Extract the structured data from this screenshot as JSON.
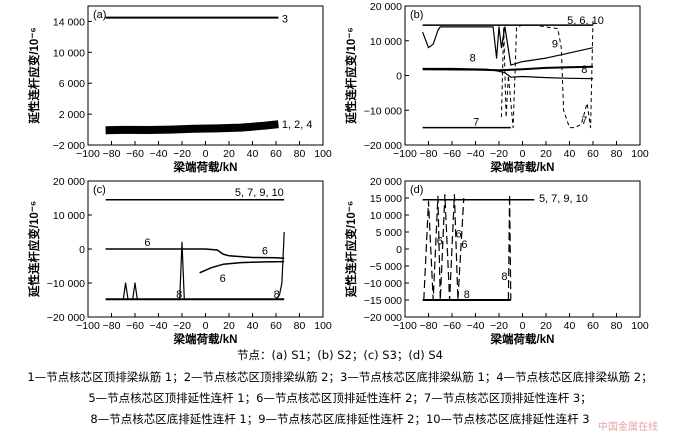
{
  "figure": {
    "ylabel": "延性连杆应变/10⁻⁶",
    "xlabel": "梁端荷载/kN",
    "nodes_caption": "节点：(a) S1；(b) S2；(c) S3；(d) S4",
    "legend_lines": [
      "1—节点核芯区顶排梁纵筋 1；2—节点核芯区顶排梁纵筋 2；3—节点核芯区底排梁纵筋 1；4—节点核芯区底排梁纵筋 2；",
      "5—节点核芯区顶排延性连杆 1；6—节点核芯区顶排延性连杆 2；7—节点核芯区顶排延性连杆 3；",
      "8—节点核芯区底排延性连杆 1；9—节点核芯区底排延性连杆 2；10—节点核芯区底排延性连杆 3"
    ],
    "watermark": "中国金属在线"
  },
  "chart_data": [
    {
      "panel": "(a)",
      "type": "line",
      "xlim": [
        -100,
        100
      ],
      "ylim": [
        -2000,
        16000
      ],
      "xticks": [
        -100,
        -80,
        -60,
        -40,
        -20,
        0,
        20,
        40,
        60,
        80,
        100
      ],
      "yticks": [
        -2000,
        2000,
        6000,
        10000,
        14000
      ],
      "xtick_labels": [
        "−100",
        "−80",
        "−60",
        "−40",
        "−20",
        "0",
        "20",
        "40",
        "60",
        "80",
        "100"
      ],
      "ytick_labels": [
        "−2 000",
        "2 000",
        "6 000",
        "10 000",
        "14 000"
      ],
      "series": [
        {
          "name": "3",
          "x": [
            -85,
            62
          ],
          "y": [
            14500,
            14500
          ],
          "width": 2
        },
        {
          "name": "1, 2, 4",
          "x": [
            -85,
            -70,
            -50,
            -30,
            -10,
            10,
            30,
            50,
            62
          ],
          "y": [
            -100,
            -50,
            -60,
            0,
            100,
            150,
            250,
            500,
            700
          ],
          "width": 8
        }
      ],
      "annotations": [
        {
          "text": "3",
          "x": 65,
          "y": 14400
        },
        {
          "text": "1, 2, 4",
          "x": 65,
          "y": 700
        }
      ]
    },
    {
      "panel": "(b)",
      "type": "line",
      "xlim": [
        -100,
        100
      ],
      "ylim": [
        -20000,
        20000
      ],
      "xticks": [
        -100,
        -80,
        -60,
        -40,
        -20,
        0,
        20,
        40,
        60,
        80,
        100
      ],
      "yticks": [
        -20000,
        -10000,
        0,
        10000,
        20000
      ],
      "xtick_labels": [
        "−100",
        "−80",
        "−60",
        "−40",
        "−20",
        "0",
        "20",
        "40",
        "60",
        "80",
        "100"
      ],
      "ytick_labels": [
        "−20 000",
        "−10 000",
        "0",
        "10 000",
        "20 000"
      ],
      "series": [
        {
          "name": "5, 6, 10",
          "x": [
            -85,
            60
          ],
          "y": [
            14500,
            14500
          ],
          "width": 1.5
        },
        {
          "name": "9",
          "x": [
            -85,
            -80,
            -76,
            -72,
            -70,
            -25,
            -22,
            -20,
            -18,
            -15,
            -10,
            0,
            20,
            40,
            60
          ],
          "y": [
            12500,
            8000,
            9000,
            13000,
            14000,
            14000,
            5000,
            14000,
            8000,
            14000,
            3000,
            4000,
            5000,
            6500,
            8000
          ],
          "width": 1.2
        },
        {
          "name": "8",
          "x": [
            -85,
            -60,
            -30,
            -20,
            -15,
            -10,
            0,
            20,
            40,
            60
          ],
          "y": [
            2000,
            2000,
            1800,
            1200,
            800,
            -500,
            -300,
            -600,
            -800,
            -900
          ],
          "width": 1.2
        },
        {
          "name": "8-top",
          "x": [
            -85,
            -40,
            -20,
            0,
            20,
            40,
            60
          ],
          "y": [
            1800,
            1700,
            1500,
            1800,
            2200,
            2400,
            2500
          ],
          "width": 2
        },
        {
          "name": "7",
          "x": [
            -85,
            -10
          ],
          "y": [
            -15000,
            -15000
          ],
          "width": 1.5
        },
        {
          "name": "7-dashed",
          "x": [
            -18,
            -16,
            -14,
            -12,
            -8,
            -5,
            0,
            10,
            20,
            30,
            33,
            35,
            40,
            45,
            50,
            55,
            58,
            60
          ],
          "y": [
            -12000,
            14000,
            -12000,
            0,
            -15000,
            14000,
            14500,
            14500,
            14000,
            13500,
            8000,
            -10000,
            -15000,
            -15000,
            -14000,
            -8000,
            -15000,
            16000
          ],
          "width": 1,
          "dash": "4,3"
        }
      ],
      "annotations": [
        {
          "text": "5, 6, 10",
          "x": 38,
          "y": 16000
        },
        {
          "text": "9",
          "x": 25,
          "y": 9200
        },
        {
          "text": "8",
          "x": -45,
          "y": 5200
        },
        {
          "text": "8",
          "x": 50,
          "y": 1800
        },
        {
          "text": "7",
          "x": -42,
          "y": -13200
        },
        {
          "text": "7",
          "x": 50,
          "y": -12800
        }
      ]
    },
    {
      "panel": "(c)",
      "type": "line",
      "xlim": [
        -100,
        100
      ],
      "ylim": [
        -20000,
        20000
      ],
      "xticks": [
        -100,
        -80,
        -60,
        -40,
        -20,
        0,
        20,
        40,
        60,
        80,
        100
      ],
      "yticks": [
        -20000,
        -10000,
        0,
        10000,
        20000
      ],
      "xtick_labels": [
        "−100",
        "−80",
        "−60",
        "−40",
        "−20",
        "0",
        "20",
        "40",
        "60",
        "80",
        "100"
      ],
      "ytick_labels": [
        "−20 000",
        "−10 000",
        "0",
        "10 000",
        "20 000"
      ],
      "series": [
        {
          "name": "5, 7, 9, 10",
          "x": [
            -85,
            67
          ],
          "y": [
            14500,
            14500
          ],
          "width": 1.5
        },
        {
          "name": "6",
          "x": [
            -85,
            -20,
            0,
            10,
            15,
            20,
            40,
            60,
            67
          ],
          "y": [
            0,
            0,
            0,
            -300,
            -1500,
            -2000,
            -2500,
            -2600,
            -2700
          ],
          "width": 1.5
        },
        {
          "name": "6-lower",
          "x": [
            -5,
            5,
            15,
            30,
            50,
            67
          ],
          "y": [
            -7000,
            -5500,
            -4500,
            -4000,
            -3800,
            -3700
          ],
          "width": 1.5
        },
        {
          "name": "8",
          "x": [
            -85,
            67
          ],
          "y": [
            -14800,
            -14800
          ],
          "width": 2
        },
        {
          "name": "8-spikes",
          "x": [
            -85,
            -70,
            -68,
            -66,
            -62,
            -60,
            -58,
            -55,
            -22,
            -20,
            -18,
            -10,
            60,
            63,
            65,
            67
          ],
          "y": [
            -14800,
            -14800,
            -10000,
            -14800,
            -14800,
            -10000,
            -14800,
            -14800,
            -14800,
            2000,
            -14800,
            -14800,
            -14800,
            -13500,
            -10000,
            5000
          ],
          "width": 1.2
        }
      ],
      "annotations": [
        {
          "text": "5, 7, 9, 10",
          "x": 25,
          "y": 16800
        },
        {
          "text": "6",
          "x": -52,
          "y": 2000
        },
        {
          "text": "6",
          "x": 48,
          "y": -500
        },
        {
          "text": "6",
          "x": 12,
          "y": -8500
        },
        {
          "text": "8",
          "x": -25,
          "y": -13200
        },
        {
          "text": "8",
          "x": 58,
          "y": -13200
        }
      ]
    },
    {
      "panel": "(d)",
      "type": "line",
      "xlim": [
        -100,
        100
      ],
      "ylim": [
        -20000,
        20000
      ],
      "xticks": [
        -100,
        -80,
        -60,
        -40,
        -20,
        0,
        20,
        40,
        60,
        80,
        100
      ],
      "yticks": [
        -20000,
        -15000,
        -10000,
        -5000,
        0,
        5000,
        10000,
        15000,
        20000
      ],
      "xtick_labels": [
        "−100",
        "−80",
        "−60",
        "−40",
        "−20",
        "0",
        "20",
        "40",
        "60",
        "80",
        "100"
      ],
      "ytick_labels": [
        "−20 000",
        "−15 000",
        "−10 000",
        "−5 000",
        "0",
        "5 000",
        "10 000",
        "15 000",
        "20 000"
      ],
      "series": [
        {
          "name": "5, 7, 9, 10",
          "x": [
            -85,
            10
          ],
          "y": [
            14500,
            14500
          ],
          "width": 1.5
        },
        {
          "name": "8",
          "x": [
            -85,
            -10
          ],
          "y": [
            -15000,
            -15000
          ],
          "width": 2
        },
        {
          "name": "6-dashed",
          "x": [
            -84,
            -80,
            -76,
            -72,
            -70,
            -66,
            -62,
            -58,
            -55,
            -50
          ],
          "y": [
            -15000,
            14000,
            -15000,
            15500,
            -15000,
            16000,
            -15000,
            16000,
            -15000,
            15000
          ],
          "width": 1.2,
          "dash": "8,4"
        },
        {
          "name": "8-dashed",
          "x": [
            -12,
            -11,
            -10
          ],
          "y": [
            -15000,
            16000,
            -15000
          ],
          "width": 1.2,
          "dash": "8,4"
        }
      ],
      "annotations": [
        {
          "text": "5, 7, 9, 10",
          "x": 14,
          "y": 15000
        },
        {
          "text": "6",
          "x": -73,
          "y": 2500
        },
        {
          "text": "6",
          "x": -57,
          "y": 4500
        },
        {
          "text": "6",
          "x": -52,
          "y": 1500
        },
        {
          "text": "8",
          "x": -18,
          "y": -8000
        },
        {
          "text": "8",
          "x": -50,
          "y": -13300
        }
      ]
    }
  ]
}
